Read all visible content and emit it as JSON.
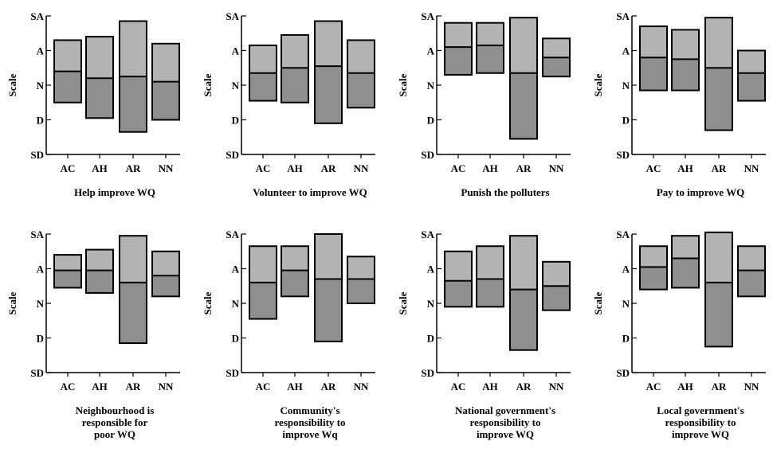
{
  "y_scale_labels": [
    "SD",
    "D",
    "N",
    "A",
    "SA"
  ],
  "y_axis_label": "Scale",
  "colors": {
    "upper_box": "#b3b3b3",
    "lower_box": "#8f8f8f",
    "stroke": "#000000"
  },
  "chart_data": [
    {
      "type": "box",
      "title": "Help improve WQ",
      "categories": [
        "AC",
        "AH",
        "AR",
        "NN"
      ],
      "ylabel": "Scale",
      "yticks": [
        "SD",
        "D",
        "N",
        "A",
        "SA"
      ],
      "ylim": [
        1,
        5
      ],
      "series": [
        {
          "name": "bottom",
          "values": [
            2.5,
            2.05,
            1.65,
            2.0
          ]
        },
        {
          "name": "median",
          "values": [
            3.4,
            3.2,
            3.25,
            3.1
          ]
        },
        {
          "name": "top",
          "values": [
            4.3,
            4.4,
            4.85,
            4.2
          ]
        }
      ]
    },
    {
      "type": "box",
      "title": "Volunteer to improve WQ",
      "categories": [
        "AC",
        "AH",
        "AR",
        "NN"
      ],
      "ylabel": "Scale",
      "yticks": [
        "SD",
        "D",
        "N",
        "A",
        "SA"
      ],
      "ylim": [
        1,
        5
      ],
      "series": [
        {
          "name": "bottom",
          "values": [
            2.55,
            2.5,
            1.9,
            2.35
          ]
        },
        {
          "name": "median",
          "values": [
            3.35,
            3.5,
            3.55,
            3.35
          ]
        },
        {
          "name": "top",
          "values": [
            4.15,
            4.45,
            4.85,
            4.3
          ]
        }
      ]
    },
    {
      "type": "box",
      "title": "Punish the polluters",
      "categories": [
        "AC",
        "AH",
        "AR",
        "NN"
      ],
      "ylabel": "Scale",
      "yticks": [
        "SD",
        "D",
        "N",
        "A",
        "SA"
      ],
      "ylim": [
        1,
        5
      ],
      "series": [
        {
          "name": "bottom",
          "values": [
            3.3,
            3.35,
            1.45,
            3.25
          ]
        },
        {
          "name": "median",
          "values": [
            4.1,
            4.15,
            3.35,
            3.8
          ]
        },
        {
          "name": "top",
          "values": [
            4.8,
            4.8,
            4.95,
            4.35
          ]
        }
      ]
    },
    {
      "type": "box",
      "title": "Pay to improve WQ",
      "categories": [
        "AC",
        "AH",
        "AR",
        "NN"
      ],
      "ylabel": "Scale",
      "yticks": [
        "SD",
        "D",
        "N",
        "A",
        "SA"
      ],
      "ylim": [
        1,
        5
      ],
      "series": [
        {
          "name": "bottom",
          "values": [
            2.85,
            2.85,
            1.7,
            2.55
          ]
        },
        {
          "name": "median",
          "values": [
            3.8,
            3.75,
            3.5,
            3.35
          ]
        },
        {
          "name": "top",
          "values": [
            4.7,
            4.6,
            4.95,
            4.0
          ]
        }
      ]
    },
    {
      "type": "box",
      "title": "Neighbourhood is\nresponsible for\npoor WQ",
      "categories": [
        "AC",
        "AH",
        "AR",
        "NN"
      ],
      "ylabel": "Scale",
      "yticks": [
        "SD",
        "D",
        "N",
        "A",
        "SA"
      ],
      "ylim": [
        1,
        5
      ],
      "series": [
        {
          "name": "bottom",
          "values": [
            3.45,
            3.3,
            1.85,
            3.2
          ]
        },
        {
          "name": "median",
          "values": [
            3.95,
            3.95,
            3.6,
            3.8
          ]
        },
        {
          "name": "top",
          "values": [
            4.4,
            4.55,
            4.95,
            4.5
          ]
        }
      ]
    },
    {
      "type": "box",
      "title": "Community's\nresponsibility  to\nimprove Wq",
      "categories": [
        "AC",
        "AH",
        "AR",
        "NN"
      ],
      "ylabel": "Scale",
      "yticks": [
        "SD",
        "D",
        "N",
        "A",
        "SA"
      ],
      "ylim": [
        1,
        5
      ],
      "series": [
        {
          "name": "bottom",
          "values": [
            2.55,
            3.2,
            1.9,
            3.0
          ]
        },
        {
          "name": "median",
          "values": [
            3.6,
            3.95,
            3.7,
            3.7
          ]
        },
        {
          "name": "top",
          "values": [
            4.65,
            4.65,
            5.0,
            4.35
          ]
        }
      ]
    },
    {
      "type": "box",
      "title": "National government's\nresponsibility to\nimprove WQ",
      "categories": [
        "AC",
        "AH",
        "AR",
        "NN"
      ],
      "ylabel": "Scale",
      "yticks": [
        "SD",
        "D",
        "N",
        "A",
        "SA"
      ],
      "ylim": [
        1,
        5
      ],
      "series": [
        {
          "name": "bottom",
          "values": [
            2.9,
            2.9,
            1.65,
            2.8
          ]
        },
        {
          "name": "median",
          "values": [
            3.65,
            3.7,
            3.4,
            3.5
          ]
        },
        {
          "name": "top",
          "values": [
            4.5,
            4.65,
            4.95,
            4.2
          ]
        }
      ]
    },
    {
      "type": "box",
      "title": "Local government's\nresponsibility to\nimprove WQ",
      "categories": [
        "AC",
        "AH",
        "AR",
        "NN"
      ],
      "ylabel": "Scale",
      "yticks": [
        "SD",
        "D",
        "N",
        "A",
        "SA"
      ],
      "ylim": [
        1,
        5
      ],
      "series": [
        {
          "name": "bottom",
          "values": [
            3.4,
            3.45,
            1.75,
            3.2
          ]
        },
        {
          "name": "median",
          "values": [
            4.05,
            4.3,
            3.6,
            3.95
          ]
        },
        {
          "name": "top",
          "values": [
            4.65,
            4.95,
            5.05,
            4.65
          ]
        }
      ]
    }
  ]
}
